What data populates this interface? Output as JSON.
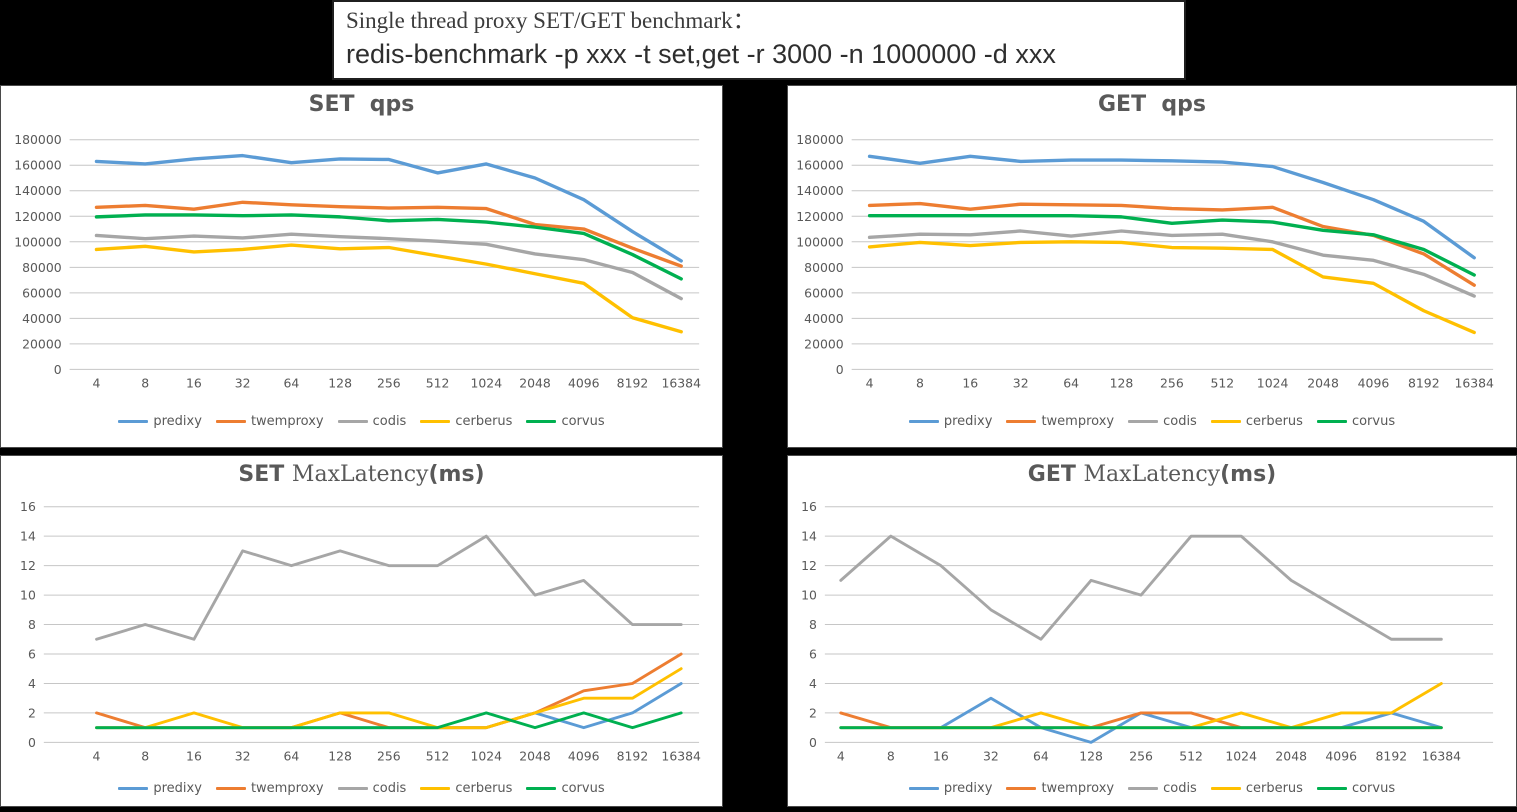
{
  "header": {
    "line1": "Single thread proxy SET/GET benchmark：",
    "line2": "redis-benchmark -p xxx -t set,get -r 3000 -n 1000000 -d xxx"
  },
  "colors": {
    "predixy": "#5B9BD5",
    "twemproxy": "#ED7D31",
    "codis": "#A6A6A6",
    "cerberus": "#FFC000",
    "corvus": "#00B050",
    "grid": "#C6C6C6",
    "text": "#595959"
  },
  "legend_labels": [
    "predixy",
    "twemproxy",
    "codis",
    "cerberus",
    "corvus"
  ],
  "chart_data": [
    {
      "id": "set-qps",
      "type": "line",
      "kind": "qps",
      "title": "SET qps",
      "title_parts": [
        {
          "text": "SET  qps",
          "serif": false
        }
      ],
      "ylim": [
        0,
        180000
      ],
      "ystep": 20000,
      "grid": true,
      "legend_position": "bottom",
      "categories": [
        "4",
        "8",
        "16",
        "32",
        "64",
        "128",
        "256",
        "512",
        "1024",
        "2048",
        "4096",
        "8192",
        "16384"
      ],
      "series": [
        {
          "name": "predixy",
          "values": [
            163000,
            161000,
            165000,
            167500,
            162000,
            165000,
            164500,
            154000,
            161000,
            150000,
            133000,
            108000,
            85000
          ]
        },
        {
          "name": "twemproxy",
          "values": [
            127000,
            128500,
            125500,
            131000,
            129000,
            127500,
            126500,
            127000,
            126000,
            113500,
            110000,
            95000,
            81000
          ]
        },
        {
          "name": "codis",
          "values": [
            105000,
            102500,
            104500,
            103000,
            106000,
            104000,
            102500,
            100500,
            98000,
            90500,
            86000,
            76000,
            55500
          ]
        },
        {
          "name": "cerberus",
          "values": [
            94000,
            96500,
            92000,
            94000,
            97500,
            94500,
            95500,
            89000,
            82500,
            75000,
            67500,
            40500,
            29500
          ]
        },
        {
          "name": "corvus",
          "values": [
            119500,
            121000,
            121000,
            120500,
            121000,
            119500,
            116500,
            117500,
            115500,
            111500,
            106500,
            90000,
            71000
          ]
        }
      ]
    },
    {
      "id": "get-qps",
      "type": "line",
      "kind": "qps",
      "title": "GET qps",
      "title_parts": [
        {
          "text": "GET  qps",
          "serif": false
        }
      ],
      "ylim": [
        0,
        180000
      ],
      "ystep": 20000,
      "grid": true,
      "legend_position": "bottom",
      "categories": [
        "4",
        "8",
        "16",
        "32",
        "64",
        "128",
        "256",
        "512",
        "1024",
        "2048",
        "4096",
        "8192",
        "16384"
      ],
      "series": [
        {
          "name": "predixy",
          "values": [
            167000,
            161500,
            167000,
            163000,
            164000,
            164000,
            163500,
            162500,
            159000,
            146500,
            133000,
            116000,
            87500
          ]
        },
        {
          "name": "twemproxy",
          "values": [
            128500,
            130000,
            125500,
            129500,
            129000,
            128500,
            126000,
            125000,
            127000,
            112000,
            105000,
            90500,
            66000
          ]
        },
        {
          "name": "codis",
          "values": [
            103500,
            106000,
            105500,
            108500,
            104500,
            108500,
            105000,
            106000,
            100000,
            89500,
            85500,
            74500,
            57500
          ]
        },
        {
          "name": "cerberus",
          "values": [
            96000,
            99500,
            97000,
            99500,
            100000,
            99500,
            95500,
            95000,
            94000,
            72500,
            67500,
            46000,
            29000
          ]
        },
        {
          "name": "corvus",
          "values": [
            120500,
            120500,
            120500,
            120500,
            120500,
            119500,
            114500,
            117000,
            115500,
            109000,
            105500,
            94000,
            74000
          ]
        }
      ]
    },
    {
      "id": "set-maxlatency",
      "type": "line",
      "kind": "latency",
      "title": "SET MaxLatency(ms)",
      "title_parts": [
        {
          "text": "SET ",
          "serif": false
        },
        {
          "text": "MaxLatency",
          "serif": true
        },
        {
          "text": "(ms)",
          "serif": false
        }
      ],
      "ylim": [
        0,
        16
      ],
      "ystep": 2,
      "grid": true,
      "legend_position": "bottom",
      "categories": [
        "4",
        "8",
        "16",
        "32",
        "64",
        "128",
        "256",
        "512",
        "1024",
        "2048",
        "4096",
        "8192",
        "16384"
      ],
      "series": [
        {
          "name": "predixy",
          "values": [
            1,
            1,
            1,
            1,
            1,
            1,
            1,
            1,
            1,
            2,
            1,
            2,
            4
          ]
        },
        {
          "name": "twemproxy",
          "values": [
            2,
            1,
            1,
            1,
            1,
            2,
            1,
            1,
            1,
            2,
            3.5,
            4,
            6
          ]
        },
        {
          "name": "codis",
          "values": [
            7,
            8,
            7,
            13,
            12,
            13,
            12,
            12,
            14,
            10,
            11,
            8,
            8
          ]
        },
        {
          "name": "cerberus",
          "values": [
            1,
            1,
            2,
            1,
            1,
            2,
            2,
            1,
            1,
            2,
            3,
            3,
            5
          ]
        },
        {
          "name": "corvus",
          "values": [
            1,
            1,
            1,
            1,
            1,
            1,
            1,
            1,
            2,
            1,
            2,
            1,
            2
          ]
        }
      ]
    },
    {
      "id": "get-maxlatency",
      "type": "line",
      "kind": "latency",
      "title": "GET MaxLatency(ms)",
      "title_parts": [
        {
          "text": "GET ",
          "serif": false
        },
        {
          "text": "MaxLatency",
          "serif": true
        },
        {
          "text": "(ms)",
          "serif": false
        }
      ],
      "ylim": [
        0,
        16
      ],
      "ystep": 2,
      "grid": true,
      "legend_position": "bottom",
      "categories": [
        "4",
        "8",
        "16",
        "32",
        "64",
        "128",
        "256",
        "512",
        "1024",
        "2048",
        "4096",
        "8192",
        "16384"
      ],
      "series": [
        {
          "name": "predixy",
          "values": [
            1,
            1,
            1,
            3,
            1,
            0,
            2,
            1,
            1,
            1,
            1,
            2,
            1
          ]
        },
        {
          "name": "twemproxy",
          "values": [
            2,
            1,
            1,
            1,
            1,
            1,
            2,
            2,
            1,
            1,
            1,
            1,
            1
          ]
        },
        {
          "name": "codis",
          "values": [
            11,
            14,
            12,
            9,
            7,
            11,
            10,
            14,
            14,
            11,
            9,
            7,
            7
          ]
        },
        {
          "name": "cerberus",
          "values": [
            1,
            1,
            1,
            1,
            2,
            1,
            1,
            1,
            2,
            1,
            2,
            2,
            4
          ]
        },
        {
          "name": "corvus",
          "values": [
            1,
            1,
            1,
            1,
            1,
            1,
            1,
            1,
            1,
            1,
            1,
            1,
            1
          ]
        }
      ]
    }
  ]
}
